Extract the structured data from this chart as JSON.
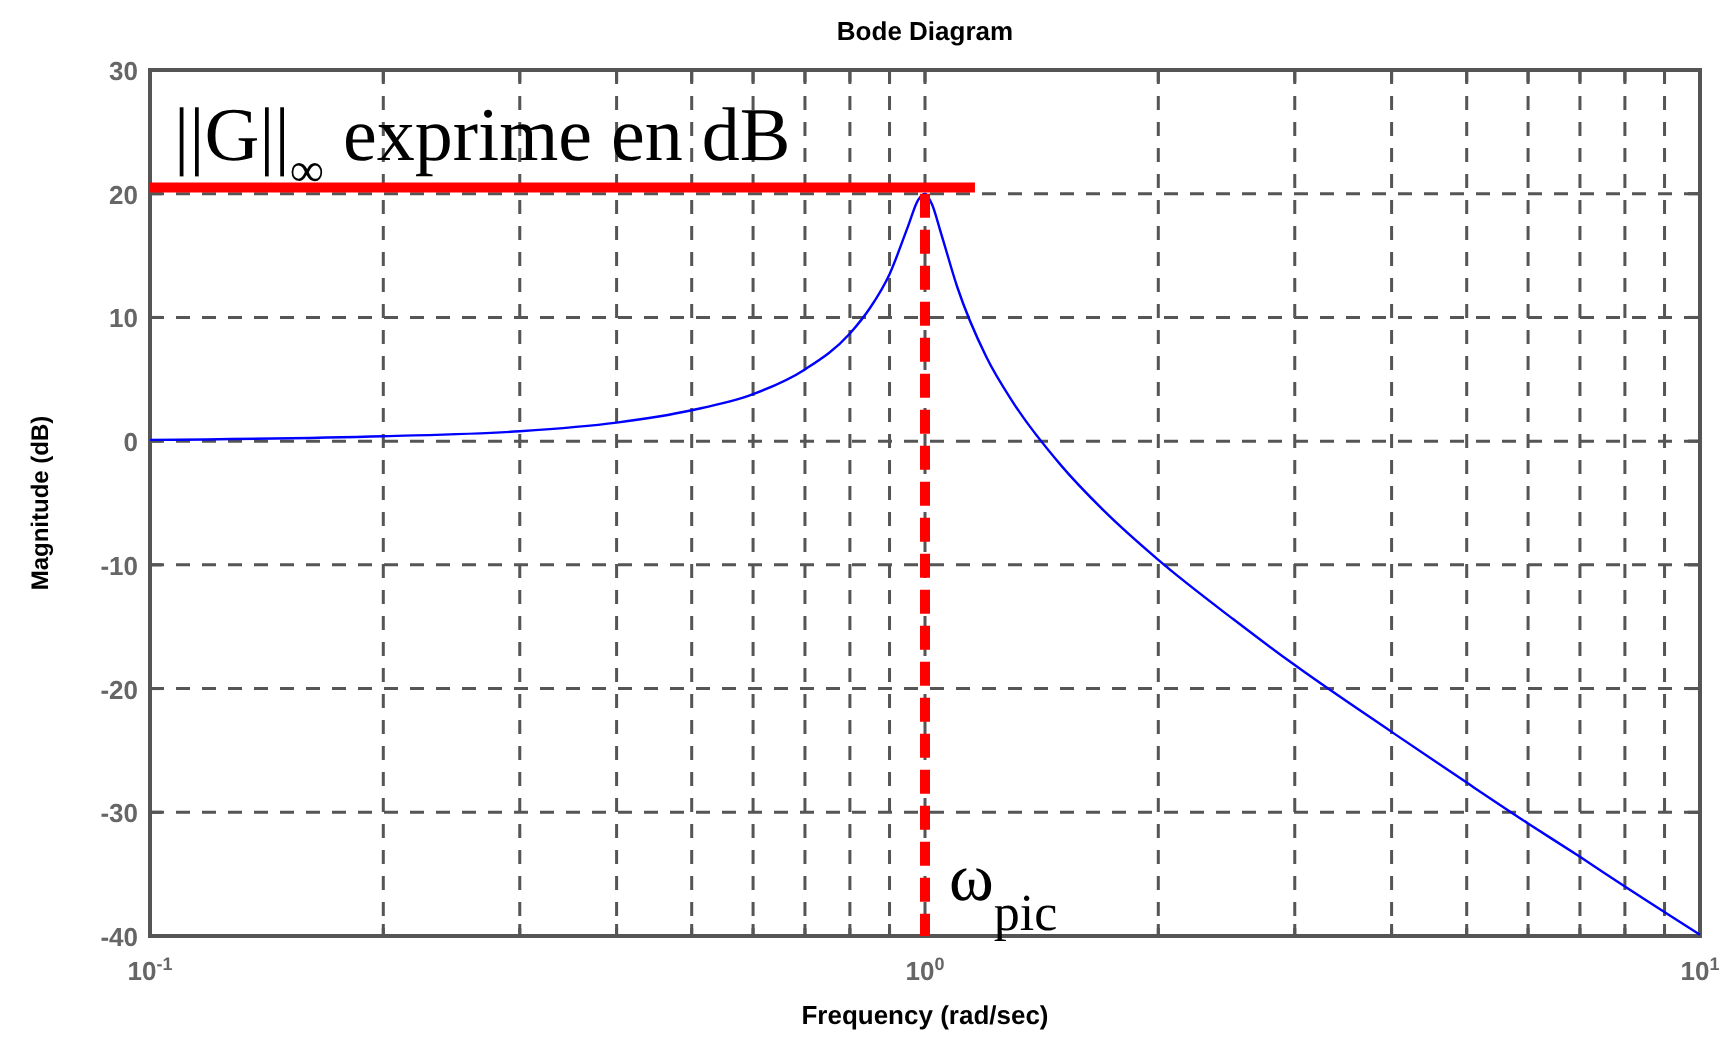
{
  "chart_data": {
    "type": "line",
    "title": "Bode Diagram",
    "xlabel": "Frequency  (rad/sec)",
    "ylabel": "Magnitude (dB)",
    "log": "x",
    "grid": true,
    "line_style": "dashed",
    "xlim": [
      0.1,
      10
    ],
    "ylim": [
      -40,
      30
    ],
    "xticks": [
      {
        "value": 0.1,
        "label": "10$^{-1}$"
      },
      {
        "value": 0.2,
        "label": null
      },
      {
        "value": 0.3,
        "label": null
      },
      {
        "value": 0.4,
        "label": null
      },
      {
        "value": 0.5,
        "label": null
      },
      {
        "value": 0.6,
        "label": null
      },
      {
        "value": 0.7,
        "label": null
      },
      {
        "value": 0.8,
        "label": null
      },
      {
        "value": 0.9,
        "label": null
      },
      {
        "value": 1,
        "label": "10$^{0}$"
      },
      {
        "value": 2,
        "label": null
      },
      {
        "value": 3,
        "label": null
      },
      {
        "value": 4,
        "label": null
      },
      {
        "value": 5,
        "label": null
      },
      {
        "value": 6,
        "label": null
      },
      {
        "value": 7,
        "label": null
      },
      {
        "value": 8,
        "label": null
      },
      {
        "value": 9,
        "label": null
      },
      {
        "value": 10,
        "label": "10$^{1}$"
      }
    ],
    "yticks": [
      -40,
      -30,
      -20,
      -10,
      0,
      10,
      20,
      30
    ],
    "series": [
      {
        "color": "#0000ff",
        "line_style": "solid",
        "x": [
          0.1,
          0.2,
          0.3,
          0.4,
          0.5,
          0.6,
          0.7,
          0.8,
          0.85,
          0.9,
          0.95,
          0.98,
          1,
          1.02,
          1.05,
          1.1,
          1.2,
          1.3,
          1.5,
          1.7,
          2,
          2.5,
          3,
          4,
          5,
          6,
          7,
          8,
          10
        ],
        "values": [
          0.1,
          0.4,
          0.8,
          1.5,
          2.5,
          3.8,
          5.8,
          8.7,
          10.8,
          13.5,
          17.3,
          19.5,
          20,
          19.2,
          16.7,
          12.5,
          6.8,
          3.1,
          -2,
          -5.6,
          -9.6,
          -14.4,
          -18.1,
          -23.5,
          -27.6,
          -30.9,
          -33.6,
          -36,
          -39.9
        ]
      },
      {
        "color": "#ff0000",
        "line_style": "solid",
        "x": [
          0.1,
          1.16
        ],
        "values": [
          20.5,
          20.5
        ]
      },
      {
        "color": "#ff0000",
        "line_style": "dashed",
        "x": [
          1,
          1
        ],
        "values": [
          20,
          -40
        ]
      }
    ],
    "annotations": [
      {
        "text": "||G||$_{∞}$ exprime en dB",
        "x": 0.1,
        "y": 20.5
      },
      {
        "text": "ω$_{pic}$",
        "x": 1,
        "y": -40
      }
    ]
  }
}
